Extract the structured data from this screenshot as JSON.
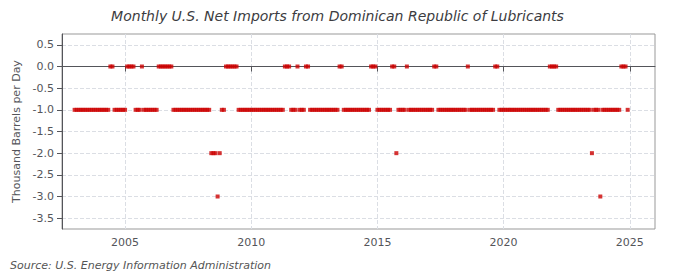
{
  "chart_data": {
    "type": "scatter",
    "title": "Monthly U.S. Net Imports from Dominican Republic of Lubricants",
    "ylabel": "Thousand Barrels per Day",
    "annotations": [
      "Source: U.S. Energy Information Administration"
    ],
    "color": "#cc0000",
    "marker": "square",
    "grid": true,
    "xlim": [
      2002.5,
      2026.0
    ],
    "xticks": [
      2005,
      2010,
      2015,
      2020,
      2025
    ],
    "ylim": [
      -3.75,
      0.75
    ],
    "yticks": [
      0.5,
      {
        "value": 0.0,
        "label": "0.0"
      },
      -0.5,
      {
        "value": -1.0,
        "label": "-1.0"
      },
      -1.5,
      {
        "value": -2.0,
        "label": "-2.0"
      },
      -2.5,
      {
        "value": -3.0,
        "label": "-3.0"
      },
      -3.5
    ],
    "x": [
      2003.0,
      2003.083,
      2003.167,
      2003.25,
      2003.333,
      2003.417,
      2003.5,
      2003.583,
      2003.667,
      2003.75,
      2003.833,
      2003.917,
      2004.0,
      2004.083,
      2004.167,
      2004.25,
      2004.333,
      2004.417,
      2004.5,
      2004.583,
      2004.667,
      2004.75,
      2004.833,
      2004.917,
      2005.0,
      2005.083,
      2005.167,
      2005.25,
      2005.333,
      2005.417,
      2005.5,
      2005.583,
      2005.667,
      2005.75,
      2005.833,
      2005.917,
      2006.0,
      2006.083,
      2006.167,
      2006.25,
      2006.333,
      2006.417,
      2006.5,
      2006.583,
      2006.667,
      2006.75,
      2006.833,
      2006.917,
      2007.0,
      2007.083,
      2007.167,
      2007.25,
      2007.333,
      2007.417,
      2007.5,
      2007.583,
      2007.667,
      2007.75,
      2007.833,
      2007.917,
      2008.0,
      2008.083,
      2008.167,
      2008.25,
      2008.333,
      2008.417,
      2008.5,
      2008.583,
      2008.667,
      2008.75,
      2008.833,
      2008.917,
      2009.0,
      2009.083,
      2009.167,
      2009.25,
      2009.333,
      2009.417,
      2009.5,
      2009.583,
      2009.667,
      2009.75,
      2009.833,
      2009.917,
      2010.0,
      2010.083,
      2010.167,
      2010.25,
      2010.333,
      2010.417,
      2010.5,
      2010.583,
      2010.667,
      2010.75,
      2010.833,
      2010.917,
      2011.0,
      2011.083,
      2011.167,
      2011.25,
      2011.333,
      2011.417,
      2011.5,
      2011.583,
      2011.667,
      2011.75,
      2011.833,
      2011.917,
      2012.0,
      2012.083,
      2012.167,
      2012.25,
      2012.333,
      2012.417,
      2012.5,
      2012.583,
      2012.667,
      2012.75,
      2012.833,
      2012.917,
      2013.0,
      2013.083,
      2013.167,
      2013.25,
      2013.333,
      2013.417,
      2013.5,
      2013.583,
      2013.667,
      2013.75,
      2013.833,
      2013.917,
      2014.0,
      2014.083,
      2014.167,
      2014.25,
      2014.333,
      2014.417,
      2014.5,
      2014.583,
      2014.667,
      2014.75,
      2014.833,
      2014.917,
      2015.0,
      2015.083,
      2015.167,
      2015.25,
      2015.333,
      2015.417,
      2015.5,
      2015.583,
      2015.667,
      2015.75,
      2015.833,
      2015.917,
      2016.0,
      2016.083,
      2016.167,
      2016.25,
      2016.333,
      2016.417,
      2016.5,
      2016.583,
      2016.667,
      2016.75,
      2016.833,
      2016.917,
      2017.0,
      2017.083,
      2017.167,
      2017.25,
      2017.333,
      2017.417,
      2017.5,
      2017.583,
      2017.667,
      2017.75,
      2017.833,
      2017.917,
      2018.0,
      2018.083,
      2018.167,
      2018.25,
      2018.333,
      2018.417,
      2018.5,
      2018.583,
      2018.667,
      2018.75,
      2018.833,
      2018.917,
      2019.0,
      2019.083,
      2019.167,
      2019.25,
      2019.333,
      2019.417,
      2019.5,
      2019.583,
      2019.667,
      2019.75,
      2019.833,
      2019.917,
      2020.0,
      2020.083,
      2020.167,
      2020.25,
      2020.333,
      2020.417,
      2020.5,
      2020.583,
      2020.667,
      2020.75,
      2020.833,
      2020.917,
      2021.0,
      2021.083,
      2021.167,
      2021.25,
      2021.333,
      2021.417,
      2021.5,
      2021.583,
      2021.667,
      2021.75,
      2021.833,
      2021.917,
      2022.0,
      2022.083,
      2022.167,
      2022.25,
      2022.333,
      2022.417,
      2022.5,
      2022.583,
      2022.667,
      2022.75,
      2022.833,
      2022.917,
      2023.0,
      2023.083,
      2023.167,
      2023.25,
      2023.333,
      2023.417,
      2023.5,
      2023.583,
      2023.667,
      2023.75,
      2023.833,
      2023.917,
      2024.0,
      2024.083,
      2024.167,
      2024.25,
      2024.333,
      2024.417,
      2024.5,
      2024.583,
      2024.667,
      2024.75,
      2024.833,
      2024.917
    ],
    "values": [
      -1,
      -1,
      -1,
      -1,
      -1,
      -1,
      -1,
      -1,
      -1,
      -1,
      -1,
      -1,
      -1,
      -1,
      -1,
      -1,
      -1,
      0,
      0,
      -1,
      -1,
      -1,
      -1,
      -1,
      -1,
      0,
      0,
      0,
      0,
      -1,
      -1,
      -1,
      0,
      -1,
      -1,
      -1,
      -1,
      -1,
      -1,
      -1,
      0,
      0,
      0,
      0,
      0,
      0,
      0,
      -1,
      -1,
      -1,
      -1,
      -1,
      -1,
      -1,
      -1,
      -1,
      -1,
      -1,
      -1,
      -1,
      -1,
      -1,
      -1,
      -1,
      -1,
      -2,
      -2,
      -2,
      -3,
      -2,
      -1,
      -1,
      0,
      0,
      0,
      0,
      0,
      0,
      -1,
      -1,
      -1,
      -1,
      -1,
      -1,
      -1,
      -1,
      -1,
      -1,
      -1,
      -1,
      -1,
      -1,
      -1,
      -1,
      -1,
      -1,
      -1,
      -1,
      -1,
      -1,
      0,
      0,
      0,
      -1,
      -1,
      -1,
      0,
      -1,
      -1,
      -1,
      0,
      0,
      -1,
      -1,
      -1,
      -1,
      -1,
      -1,
      -1,
      -1,
      -1,
      -1,
      -1,
      -1,
      -1,
      -1,
      0,
      0,
      -1,
      -1,
      -1,
      -1,
      -1,
      -1,
      -1,
      -1,
      -1,
      -1,
      -1,
      -1,
      -1,
      0,
      0,
      0,
      -1,
      -1,
      -1,
      -1,
      -1,
      -1,
      -1,
      0,
      0,
      -2,
      -1,
      -1,
      -1,
      -1,
      0,
      -1,
      -1,
      -1,
      -1,
      -1,
      -1,
      -1,
      -1,
      -1,
      -1,
      -1,
      -1,
      0,
      0,
      -1,
      -1,
      -1,
      -1,
      -1,
      -1,
      -1,
      -1,
      -1,
      -1,
      -1,
      -1,
      -1,
      -1,
      0,
      -1,
      -1,
      -1,
      -1,
      -1,
      -1,
      -1,
      -1,
      -1,
      -1,
      -1,
      -1,
      0,
      0,
      -1,
      -1,
      -1,
      -1,
      -1,
      -1,
      -1,
      -1,
      -1,
      -1,
      -1,
      -1,
      -1,
      -1,
      -1,
      -1,
      -1,
      -1,
      -1,
      -1,
      -1,
      -1,
      -1,
      -1,
      0,
      0,
      0,
      0,
      -1,
      -1,
      -1,
      -1,
      -1,
      -1,
      -1,
      -1,
      -1,
      -1,
      -1,
      -1,
      -1,
      -1,
      -1,
      -1,
      -2,
      -1,
      -1,
      -1,
      -3,
      -1,
      -1,
      -1,
      -1,
      -1,
      -1,
      -1,
      -1,
      -1,
      0,
      0,
      0,
      -1
    ]
  }
}
